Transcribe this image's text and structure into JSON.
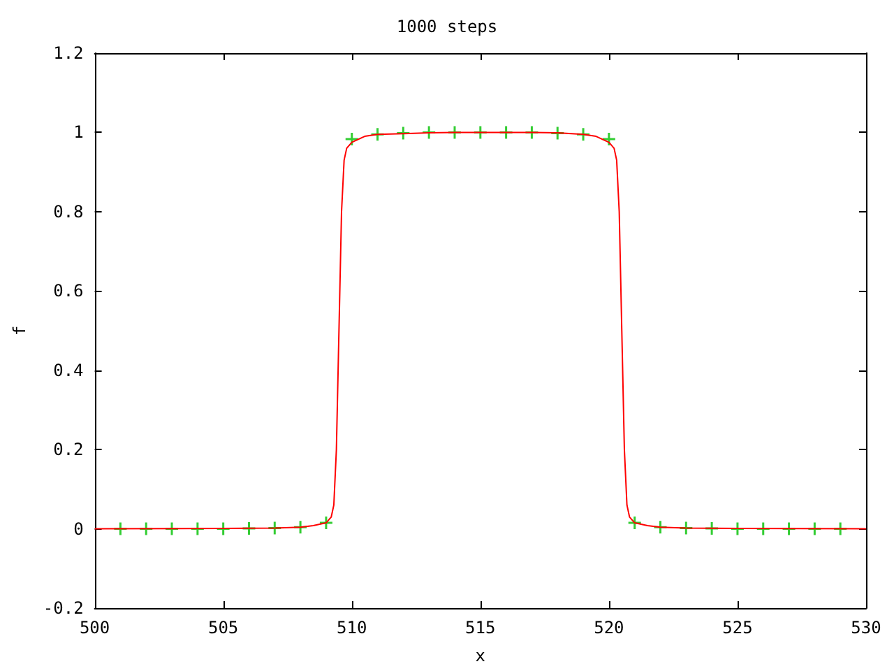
{
  "chart_data": {
    "type": "line",
    "title": "1000 steps",
    "xlabel": "x",
    "ylabel": "f",
    "xlim": [
      500,
      530
    ],
    "xticks": [
      500,
      505,
      510,
      515,
      520,
      525,
      530
    ],
    "ylim": [
      -0.2,
      1.2
    ],
    "yticks": [
      -0.2,
      0,
      0.2,
      0.4,
      0.6,
      0.8,
      1,
      1.2
    ],
    "grid": false,
    "series": [
      {
        "color": "#ff0000",
        "marker": "none",
        "line_style": "solid",
        "x": [
          500,
          505,
          507,
          508,
          508.5,
          509,
          509.2,
          509.3,
          509.4,
          509.5,
          509.6,
          509.7,
          509.8,
          510,
          510.5,
          511,
          512,
          513,
          514,
          515,
          516,
          517,
          518,
          519,
          519.5,
          520,
          520.2,
          520.3,
          520.4,
          520.5,
          520.6,
          520.7,
          520.8,
          521,
          521.5,
          522,
          523,
          525,
          530
        ],
        "values": [
          0,
          0.001,
          0.002,
          0.004,
          0.008,
          0.015,
          0.03,
          0.06,
          0.2,
          0.5,
          0.8,
          0.93,
          0.96,
          0.975,
          0.99,
          0.995,
          0.997,
          0.999,
          1,
          1,
          1,
          1,
          0.999,
          0.995,
          0.99,
          0.975,
          0.96,
          0.93,
          0.8,
          0.5,
          0.2,
          0.06,
          0.03,
          0.015,
          0.008,
          0.004,
          0.002,
          0.001,
          0
        ]
      },
      {
        "type": "scatter",
        "color": "#00c000",
        "marker": "cross",
        "x": [
          501,
          502,
          503,
          504,
          505,
          506,
          507,
          508,
          509,
          510,
          511,
          512,
          513,
          514,
          515,
          516,
          517,
          518,
          519,
          520,
          521,
          522,
          523,
          524,
          525,
          526,
          527,
          528,
          529
        ],
        "values": [
          0,
          0,
          0,
          0,
          0,
          0.001,
          0.002,
          0.004,
          0.015,
          0.983,
          0.995,
          0.998,
          1,
          1,
          1,
          1,
          1,
          0.998,
          0.995,
          0.983,
          0.015,
          0.004,
          0.002,
          0.001,
          0,
          0,
          0,
          0,
          0
        ]
      }
    ]
  }
}
